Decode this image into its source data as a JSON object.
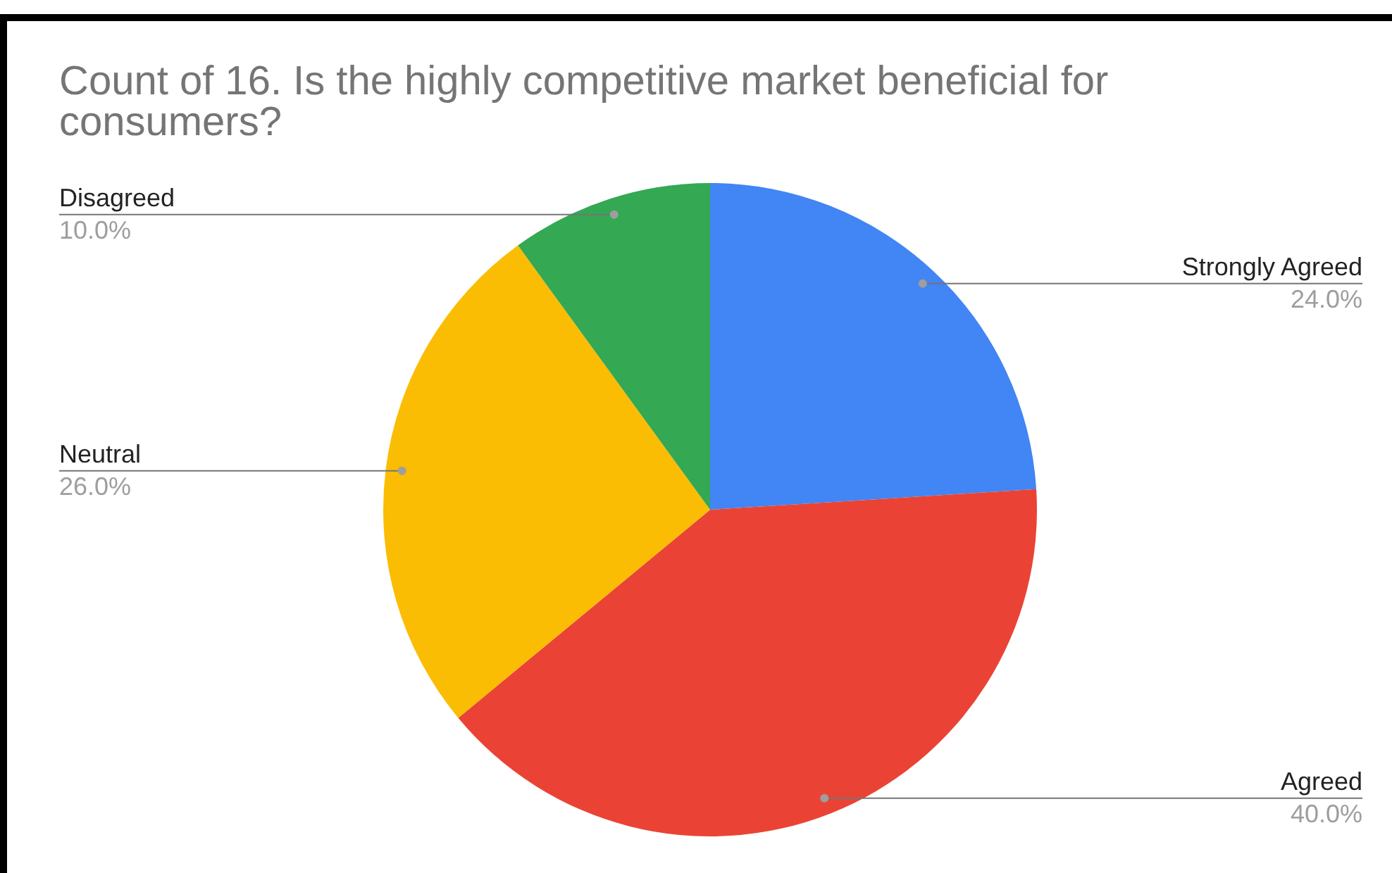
{
  "chart_data": {
    "type": "pie",
    "title": "Count of 16. Is the highly competitive market beneficial for consumers?",
    "categories": [
      "Strongly Agreed",
      "Agreed",
      "Neutral",
      "Disagreed"
    ],
    "values": [
      24,
      40,
      26,
      10
    ],
    "colors": [
      "#4285f4",
      "#ea4335",
      "#fbbc04",
      "#34a853"
    ],
    "value_labels": [
      "24.0%",
      "40.0%",
      "26.0%",
      "10.0%"
    ],
    "legend": false
  }
}
